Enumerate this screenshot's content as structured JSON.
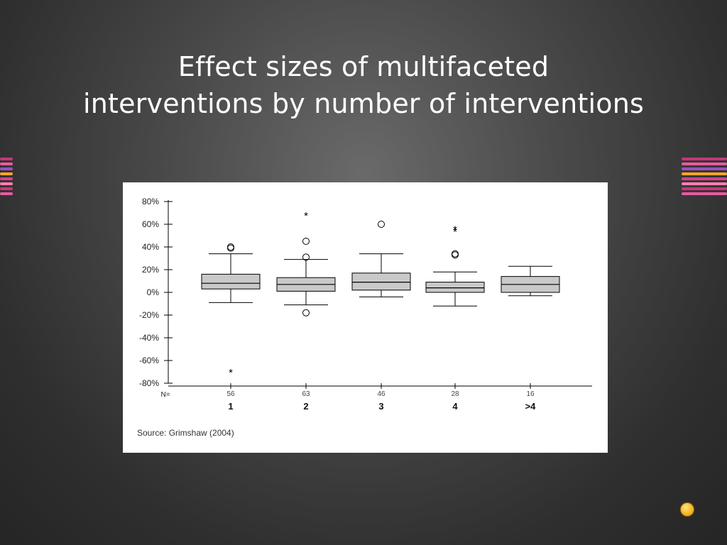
{
  "slide": {
    "title_line1": "Effect sizes of multifaceted",
    "title_line2": "interventions by number of interventions",
    "source": "Source: Grimshaw (2004)",
    "decor_stripe_colors": [
      "#c8357a",
      "#e85aa0",
      "#9b4fc4",
      "#f5a623",
      "#d6408a",
      "#ff7fb0",
      "#c8357a",
      "#e85aa0"
    ],
    "bullet_icon": "orange-orb-icon"
  },
  "chart_data": {
    "type": "boxplot",
    "y_tick_labels": [
      "80%",
      "60%",
      "40%",
      "20%",
      "0%",
      "-20%",
      "-40%",
      "-60%",
      "-80%"
    ],
    "y_ticks": [
      80,
      60,
      40,
      20,
      0,
      -20,
      -40,
      -60,
      -80
    ],
    "ylim": [
      -80,
      80
    ],
    "n_label": "N=",
    "categories": [
      "1",
      "2",
      "3",
      "4",
      ">4"
    ],
    "n_values": [
      "56",
      "63",
      "46",
      "28",
      "16"
    ],
    "boxes": [
      {
        "whisker_low": -9,
        "q1": 3,
        "median": 8,
        "q3": 16,
        "whisker_high": 34,
        "outliers": [
          40,
          39
        ],
        "extremes": [
          -70
        ]
      },
      {
        "whisker_low": -11,
        "q1": 1,
        "median": 7,
        "q3": 13,
        "whisker_high": 29,
        "outliers": [
          45,
          31,
          -18
        ],
        "extremes": [
          68
        ]
      },
      {
        "whisker_low": -4,
        "q1": 2,
        "median": 9,
        "q3": 17,
        "whisker_high": 34,
        "outliers": [
          60
        ],
        "extremes": []
      },
      {
        "whisker_low": -12,
        "q1": 0,
        "median": 4,
        "q3": 9,
        "whisker_high": 18,
        "outliers": [
          34,
          33
        ],
        "extremes": [
          56,
          54
        ]
      },
      {
        "whisker_low": -3,
        "q1": 0,
        "median": 7,
        "q3": 14,
        "whisker_high": 23,
        "outliers": [],
        "extremes": []
      }
    ],
    "outlier_marker": "circle",
    "extreme_marker": "asterisk",
    "box_fill": "#c9c9c9"
  }
}
